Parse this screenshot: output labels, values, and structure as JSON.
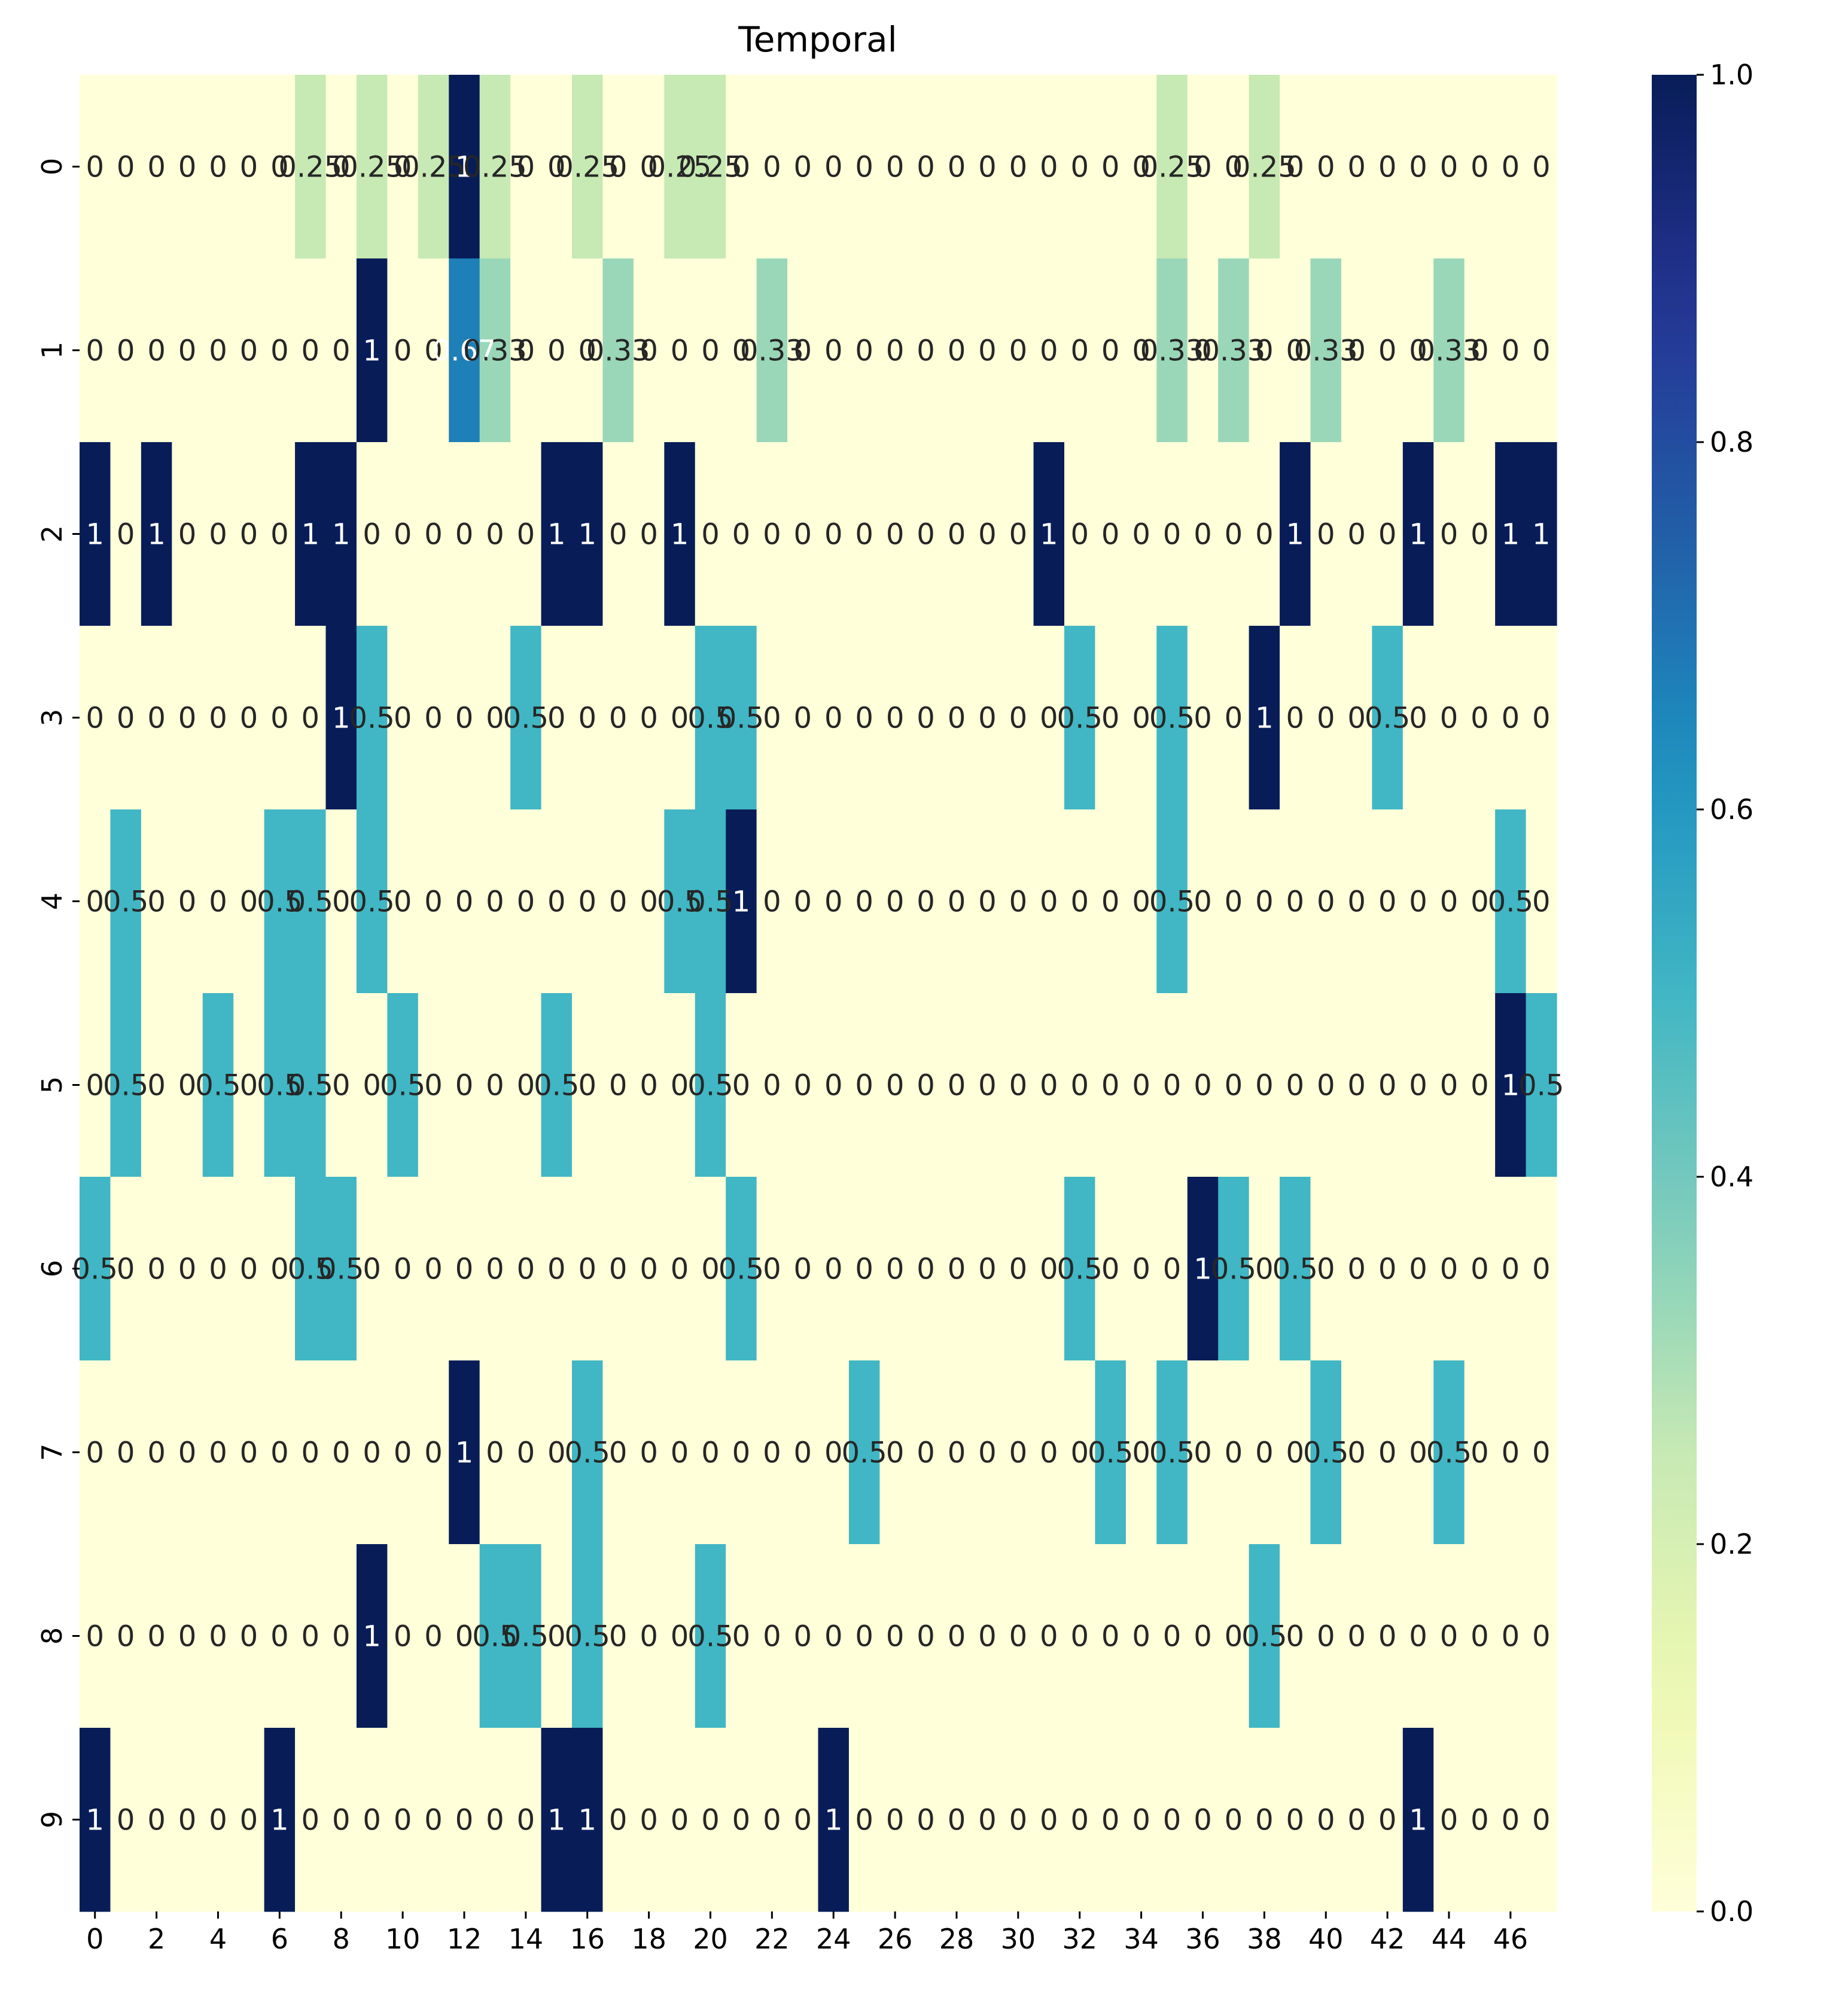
{
  "chart_data": {
    "type": "heatmap",
    "title": "Temporal",
    "xlabel": "",
    "ylabel": "",
    "x_tick_labels": [
      "0",
      "2",
      "4",
      "6",
      "8",
      "10",
      "12",
      "14",
      "16",
      "18",
      "20",
      "22",
      "24",
      "26",
      "28",
      "30",
      "32",
      "34",
      "36",
      "38",
      "40",
      "42",
      "44",
      "46"
    ],
    "y_tick_labels": [
      "0",
      "1",
      "2",
      "3",
      "4",
      "5",
      "6",
      "7",
      "8",
      "9"
    ],
    "colorbar": {
      "min": 0.0,
      "max": 1.0,
      "tick_labels": [
        "0.0",
        "0.2",
        "0.4",
        "0.6",
        "0.8",
        "1.0"
      ],
      "colormap": "YlGnBu"
    },
    "n_cols": 48,
    "n_rows": 10,
    "values": [
      [
        0,
        0,
        0,
        0,
        0,
        0,
        0,
        0.25,
        0,
        0.25,
        0,
        0.25,
        1,
        0.25,
        0,
        0,
        0.25,
        0,
        0,
        0.25,
        0.25,
        0,
        0,
        0,
        0,
        0,
        0,
        0,
        0,
        0,
        0,
        0,
        0,
        0,
        0,
        0.25,
        0,
        0,
        0.25,
        0,
        0,
        0,
        0,
        0,
        0,
        0,
        0,
        0
      ],
      [
        0,
        0,
        0,
        0,
        0,
        0,
        0,
        0,
        0,
        1,
        0,
        0,
        0.67,
        0.33,
        0,
        0,
        0,
        0.33,
        0,
        0,
        0,
        0,
        0.33,
        0,
        0,
        0,
        0,
        0,
        0,
        0,
        0,
        0,
        0,
        0,
        0,
        0.33,
        0,
        0.33,
        0,
        0,
        0.33,
        0,
        0,
        0,
        0.33,
        0,
        0,
        0
      ],
      [
        1,
        0,
        1,
        0,
        0,
        0,
        0,
        1,
        1,
        0,
        0,
        0,
        0,
        0,
        0,
        1,
        1,
        0,
        0,
        1,
        0,
        0,
        0,
        0,
        0,
        0,
        0,
        0,
        0,
        0,
        0,
        1,
        0,
        0,
        0,
        0,
        0,
        0,
        0,
        1,
        0,
        0,
        0,
        1,
        0,
        0,
        1,
        1
      ],
      [
        0,
        0,
        0,
        0,
        0,
        0,
        0,
        0,
        1,
        0.5,
        0,
        0,
        0,
        0,
        0.5,
        0,
        0,
        0,
        0,
        0,
        0.5,
        0.5,
        0,
        0,
        0,
        0,
        0,
        0,
        0,
        0,
        0,
        0,
        0.5,
        0,
        0,
        0.5,
        0,
        0,
        1,
        0,
        0,
        0,
        0.5,
        0,
        0,
        0,
        0,
        0
      ],
      [
        0,
        0.5,
        0,
        0,
        0,
        0,
        0.5,
        0.5,
        0,
        0.5,
        0,
        0,
        0,
        0,
        0,
        0,
        0,
        0,
        0,
        0.5,
        0.5,
        1,
        0,
        0,
        0,
        0,
        0,
        0,
        0,
        0,
        0,
        0,
        0,
        0,
        0,
        0.5,
        0,
        0,
        0,
        0,
        0,
        0,
        0,
        0,
        0,
        0,
        0.5,
        0
      ],
      [
        0,
        0.5,
        0,
        0,
        0.5,
        0,
        0.5,
        0.5,
        0,
        0,
        0.5,
        0,
        0,
        0,
        0,
        0.5,
        0,
        0,
        0,
        0,
        0.5,
        0,
        0,
        0,
        0,
        0,
        0,
        0,
        0,
        0,
        0,
        0,
        0,
        0,
        0,
        0,
        0,
        0,
        0,
        0,
        0,
        0,
        0,
        0,
        0,
        0,
        1,
        0.5
      ],
      [
        0.5,
        0,
        0,
        0,
        0,
        0,
        0,
        0.5,
        0.5,
        0,
        0,
        0,
        0,
        0,
        0,
        0,
        0,
        0,
        0,
        0,
        0,
        0.5,
        0,
        0,
        0,
        0,
        0,
        0,
        0,
        0,
        0,
        0,
        0.5,
        0,
        0,
        0,
        1,
        0.5,
        0,
        0.5,
        0,
        0,
        0,
        0,
        0,
        0,
        0,
        0
      ],
      [
        0,
        0,
        0,
        0,
        0,
        0,
        0,
        0,
        0,
        0,
        0,
        0,
        1,
        0,
        0,
        0,
        0.5,
        0,
        0,
        0,
        0,
        0,
        0,
        0,
        0,
        0.5,
        0,
        0,
        0,
        0,
        0,
        0,
        0,
        0.5,
        0,
        0.5,
        0,
        0,
        0,
        0,
        0.5,
        0,
        0,
        0,
        0.5,
        0,
        0,
        0
      ],
      [
        0,
        0,
        0,
        0,
        0,
        0,
        0,
        0,
        0,
        1,
        0,
        0,
        0,
        0.5,
        0.5,
        0,
        0.5,
        0,
        0,
        0,
        0.5,
        0,
        0,
        0,
        0,
        0,
        0,
        0,
        0,
        0,
        0,
        0,
        0,
        0,
        0,
        0,
        0,
        0,
        0.5,
        0,
        0,
        0,
        0,
        0,
        0,
        0,
        0,
        0
      ],
      [
        1,
        0,
        0,
        0,
        0,
        0,
        1,
        0,
        0,
        0,
        0,
        0,
        0,
        0,
        0,
        1,
        1,
        0,
        0,
        0,
        0,
        0,
        0,
        0,
        1,
        0,
        0,
        0,
        0,
        0,
        0,
        0,
        0,
        0,
        0,
        0,
        0,
        0,
        0,
        0,
        0,
        0,
        0,
        1,
        0,
        0,
        0,
        0
      ]
    ],
    "cell_labels": [
      [
        "0",
        "0",
        "0",
        "0",
        "0",
        "0",
        "0",
        "0.25",
        "0",
        "0.25",
        "0",
        "0.25",
        "1",
        "0.25",
        "0",
        "0",
        "0.25",
        "0",
        "0",
        "0.25",
        "0.25",
        "0",
        "0",
        "0",
        "0",
        "0",
        "0",
        "0",
        "0",
        "0",
        "0",
        "0",
        "0",
        "0",
        "0",
        "0.25",
        "0",
        "0",
        "0.25",
        "0",
        "0",
        "0",
        "0",
        "0",
        "0",
        "0",
        "0",
        "0"
      ],
      [
        "0",
        "0",
        "0",
        "0",
        "0",
        "0",
        "0",
        "0",
        "0",
        "1",
        "0",
        "0",
        "0.67",
        "0.33",
        "0",
        "0",
        "0",
        "0.33",
        "0",
        "0",
        "0",
        "0",
        "0.33",
        "0",
        "0",
        "0",
        "0",
        "0",
        "0",
        "0",
        "0",
        "0",
        "0",
        "0",
        "0",
        "0.33",
        "0",
        "0.33",
        "0",
        "0",
        "0.33",
        "0",
        "0",
        "0",
        "0.33",
        "0",
        "0",
        "0"
      ],
      [
        "1",
        "0",
        "1",
        "0",
        "0",
        "0",
        "0",
        "1",
        "1",
        "0",
        "0",
        "0",
        "0",
        "0",
        "0",
        "1",
        "1",
        "0",
        "0",
        "1",
        "0",
        "0",
        "0",
        "0",
        "0",
        "0",
        "0",
        "0",
        "0",
        "0",
        "0",
        "1",
        "0",
        "0",
        "0",
        "0",
        "0",
        "0",
        "0",
        "1",
        "0",
        "0",
        "0",
        "1",
        "0",
        "0",
        "1",
        "1"
      ],
      [
        "0",
        "0",
        "0",
        "0",
        "0",
        "0",
        "0",
        "0",
        "1",
        "0.5",
        "0",
        "0",
        "0",
        "0",
        "0.5",
        "0",
        "0",
        "0",
        "0",
        "0",
        "0.5",
        "0.5",
        "0",
        "0",
        "0",
        "0",
        "0",
        "0",
        "0",
        "0",
        "0",
        "0",
        "0.5",
        "0",
        "0",
        "0.5",
        "0",
        "0",
        "1",
        "0",
        "0",
        "0",
        "0.5",
        "0",
        "0",
        "0",
        "0",
        "0"
      ],
      [
        "0",
        "0.5",
        "0",
        "0",
        "0",
        "0",
        "0.5",
        "0.5",
        "0",
        "0.5",
        "0",
        "0",
        "0",
        "0",
        "0",
        "0",
        "0",
        "0",
        "0",
        "0.5",
        "0.5",
        "1",
        "0",
        "0",
        "0",
        "0",
        "0",
        "0",
        "0",
        "0",
        "0",
        "0",
        "0",
        "0",
        "0",
        "0.5",
        "0",
        "0",
        "0",
        "0",
        "0",
        "0",
        "0",
        "0",
        "0",
        "0",
        "0.5",
        "0"
      ],
      [
        "0",
        "0.5",
        "0",
        "0",
        "0.5",
        "0",
        "0.5",
        "0.5",
        "0",
        "0",
        "0.5",
        "0",
        "0",
        "0",
        "0",
        "0.5",
        "0",
        "0",
        "0",
        "0",
        "0.5",
        "0",
        "0",
        "0",
        "0",
        "0",
        "0",
        "0",
        "0",
        "0",
        "0",
        "0",
        "0",
        "0",
        "0",
        "0",
        "0",
        "0",
        "0",
        "0",
        "0",
        "0",
        "0",
        "0",
        "0",
        "0",
        "1",
        "0.5"
      ],
      [
        "0.5",
        "0",
        "0",
        "0",
        "0",
        "0",
        "0",
        "0.5",
        "0.5",
        "0",
        "0",
        "0",
        "0",
        "0",
        "0",
        "0",
        "0",
        "0",
        "0",
        "0",
        "0",
        "0.5",
        "0",
        "0",
        "0",
        "0",
        "0",
        "0",
        "0",
        "0",
        "0",
        "0",
        "0.5",
        "0",
        "0",
        "0",
        "1",
        "0.5",
        "0",
        "0.5",
        "0",
        "0",
        "0",
        "0",
        "0",
        "0",
        "0",
        "0"
      ],
      [
        "0",
        "0",
        "0",
        "0",
        "0",
        "0",
        "0",
        "0",
        "0",
        "0",
        "0",
        "0",
        "1",
        "0",
        "0",
        "0",
        "0.5",
        "0",
        "0",
        "0",
        "0",
        "0",
        "0",
        "0",
        "0",
        "0.5",
        "0",
        "0",
        "0",
        "0",
        "0",
        "0",
        "0",
        "0.5",
        "0",
        "0.5",
        "0",
        "0",
        "0",
        "0",
        "0.5",
        "0",
        "0",
        "0",
        "0.5",
        "0",
        "0",
        "0"
      ],
      [
        "0",
        "0",
        "0",
        "0",
        "0",
        "0",
        "0",
        "0",
        "0",
        "1",
        "0",
        "0",
        "0",
        "0.5",
        "0.5",
        "0",
        "0.5",
        "0",
        "0",
        "0",
        "0.5",
        "0",
        "0",
        "0",
        "0",
        "0",
        "0",
        "0",
        "0",
        "0",
        "0",
        "0",
        "0",
        "0",
        "0",
        "0",
        "0",
        "0",
        "0.5",
        "0",
        "0",
        "0",
        "0",
        "0",
        "0",
        "0",
        "0",
        "0"
      ],
      [
        "1",
        "0",
        "0",
        "0",
        "0",
        "0",
        "1",
        "0",
        "0",
        "0",
        "0",
        "0",
        "0",
        "0",
        "0",
        "1",
        "1",
        "0",
        "0",
        "0",
        "0",
        "0",
        "0",
        "0",
        "1",
        "0",
        "0",
        "0",
        "0",
        "0",
        "0",
        "0",
        "0",
        "0",
        "0",
        "0",
        "0",
        "0",
        "0",
        "0",
        "0",
        "0",
        "0",
        "1",
        "0",
        "0",
        "0",
        "0"
      ]
    ],
    "grid": false,
    "legend": "colorbar-right"
  }
}
